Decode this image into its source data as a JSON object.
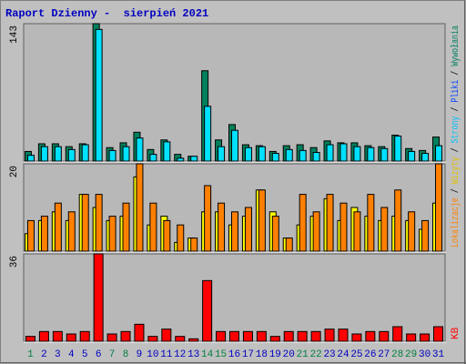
{
  "chart_data": {
    "type": "bar",
    "title": "Raport Dzienny -  sierpień 2021",
    "categories": [
      "1",
      "2",
      "3",
      "4",
      "5",
      "6",
      "7",
      "8",
      "9",
      "10",
      "11",
      "12",
      "13",
      "14",
      "15",
      "16",
      "17",
      "18",
      "19",
      "20",
      "21",
      "22",
      "23",
      "24",
      "25",
      "26",
      "27",
      "28",
      "29",
      "30",
      "31"
    ],
    "category_colors": [
      "#008040",
      "#0000c0",
      "#0000c0",
      "#0000c0",
      "#0000c0",
      "#0000c0",
      "#008040",
      "#008040",
      "#0000c0",
      "#0000c0",
      "#0000c0",
      "#0000c0",
      "#0000c0",
      "#008040",
      "#008040",
      "#0000c0",
      "#0000c0",
      "#0000c0",
      "#0000c0",
      "#0000c0",
      "#008040",
      "#008040",
      "#0000c0",
      "#0000c0",
      "#0000c0",
      "#0000c0",
      "#0000c0",
      "#008040",
      "#008040",
      "#0000c0",
      "#0000c0"
    ],
    "legend": [
      {
        "name": "Lokalizacje",
        "color": "#ff8000"
      },
      {
        "name": "Wizyty",
        "color": "#e0c000"
      },
      {
        "name": "Strony",
        "color": "#00c0ff"
      },
      {
        "name": "Pliki",
        "color": "#0040ff"
      },
      {
        "name": "Wywołania",
        "color": "#008060"
      }
    ],
    "legend_separator": "/",
    "panels": [
      {
        "ylim": [
          0,
          143
        ],
        "yticks": [
          143
        ],
        "series": [
          {
            "color": "#00805c",
            "values": [
              10,
              18,
              18,
              15,
              18,
              143,
              14,
              19,
              30,
              12,
              22,
              7,
              5,
              94,
              22,
              38,
              17,
              16,
              10,
              16,
              17,
              14,
              21,
              19,
              19,
              16,
              15,
              27,
              13,
              11,
              25
            ]
          },
          {
            "color": "#00e0ff",
            "values": [
              6,
              15,
              15,
              12,
              17,
              137,
              11,
              15,
              24,
              7,
              20,
              3,
              5,
              57,
              15,
              32,
              14,
              15,
              8,
              12,
              11,
              9,
              17,
              18,
              15,
              14,
              13,
              26,
              10,
              8,
              16
            ]
          }
        ]
      },
      {
        "ylim": [
          0,
          20
        ],
        "yticks": [
          20
        ],
        "series": [
          {
            "color": "#ffff00",
            "values": [
              4,
              7,
              9,
              7,
              13,
              10,
              7,
              8,
              17,
              6,
              8,
              2,
              3,
              9,
              9,
              6,
              8,
              14,
              9,
              3,
              6,
              8,
              12,
              7,
              10,
              8,
              7,
              8,
              7,
              5,
              11
            ]
          },
          {
            "color": "#ff8000",
            "values": [
              7,
              8,
              11,
              9,
              13,
              13,
              8,
              11,
              20,
              11,
              7,
              6,
              3,
              15,
              11,
              9,
              10,
              14,
              8,
              3,
              13,
              9,
              13,
              11,
              9,
              13,
              10,
              14,
              9,
              7,
              20
            ]
          }
        ]
      },
      {
        "ylim": [
          0,
          36
        ],
        "yticks": [
          36
        ],
        "unit_label": "KB",
        "unit_color": "#ff0000",
        "series": [
          {
            "color": "#ff0000",
            "values": [
              2,
              4,
              4,
              3,
              4,
              36,
              3,
              4,
              7,
              2,
              5,
              2,
              1,
              25,
              4,
              4,
              4,
              4,
              2,
              4,
              4,
              4,
              5,
              5,
              3,
              4,
              4,
              6,
              3,
              3,
              6
            ]
          }
        ]
      }
    ]
  }
}
